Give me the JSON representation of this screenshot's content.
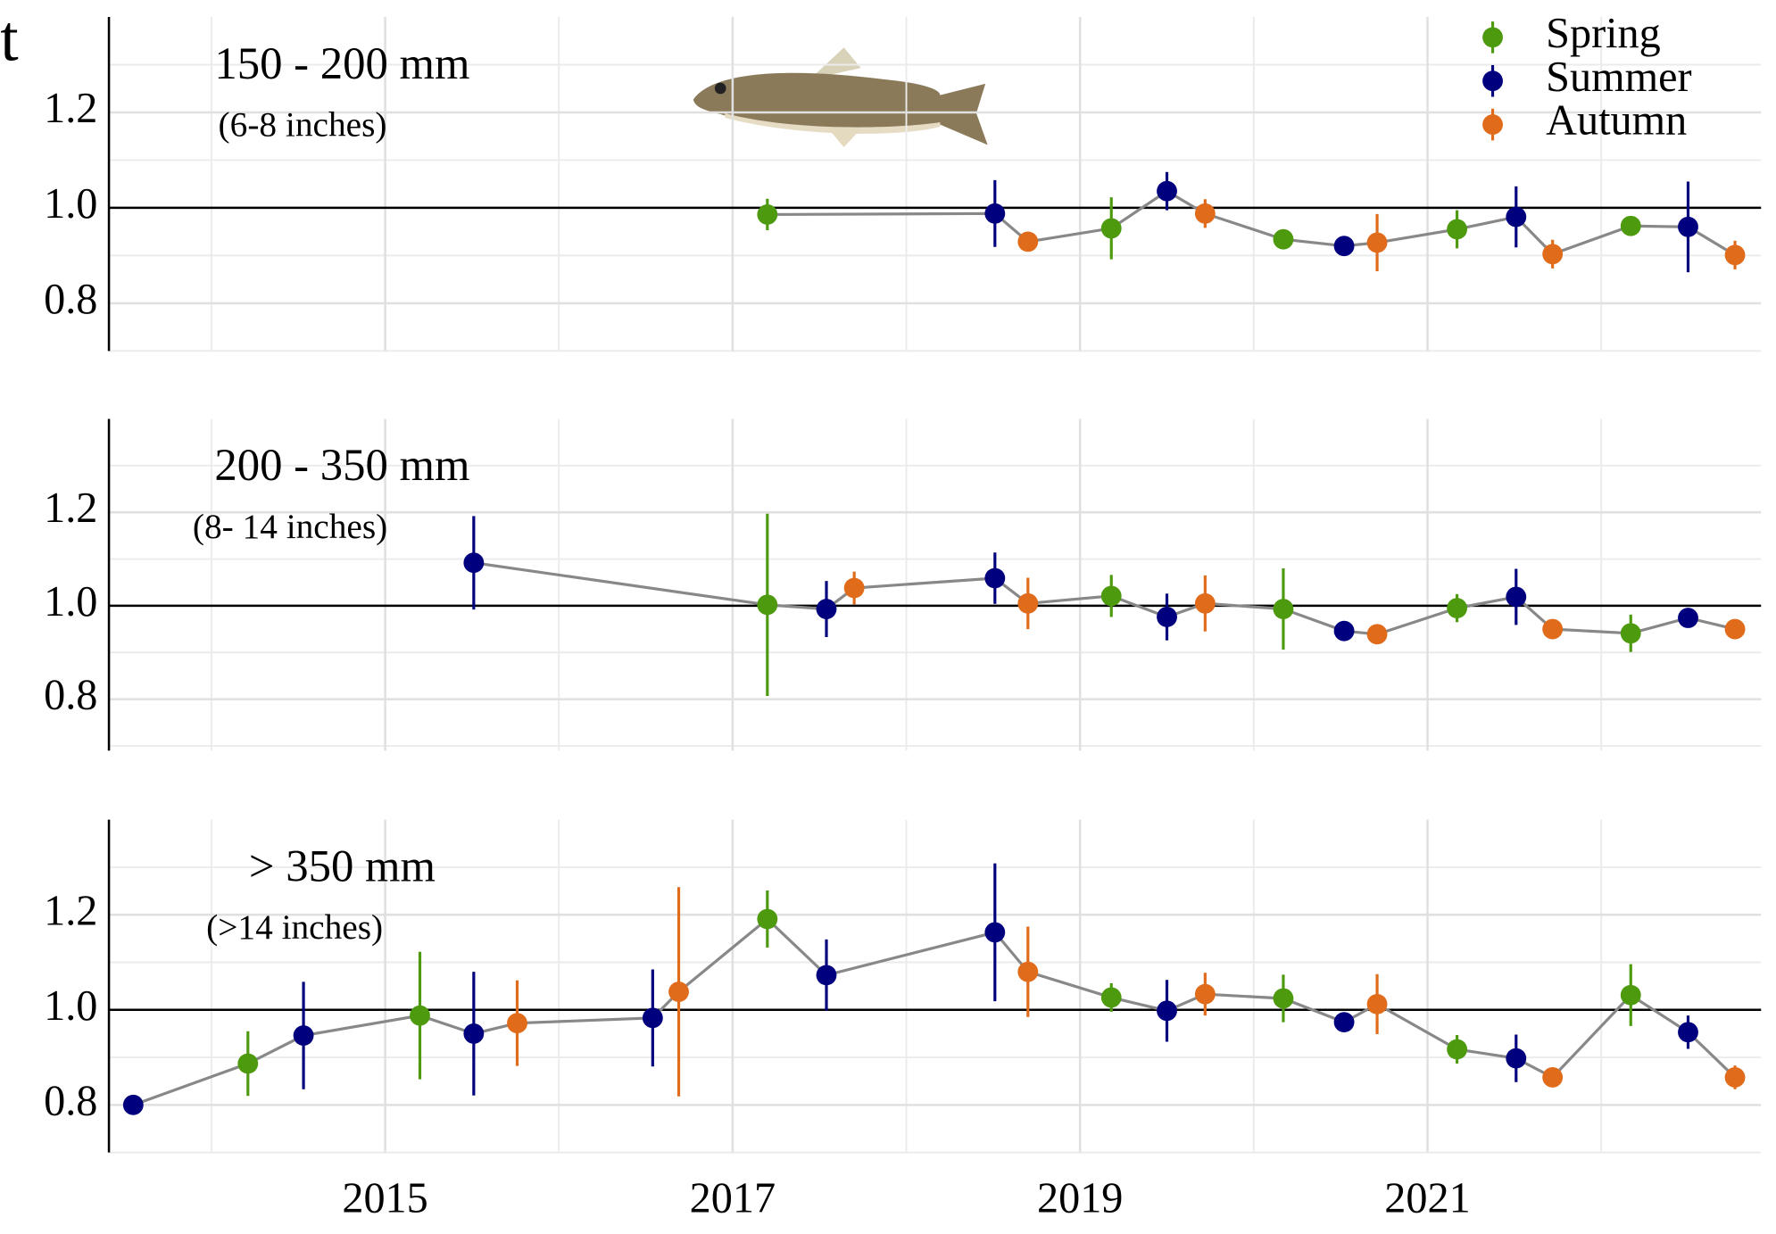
{
  "cropped_label": "t",
  "chart_data": [
    {
      "type": "scatter",
      "title": "150 - 200 mm",
      "subtitle": "(6-8 inches)",
      "xlim": [
        2013.41,
        2022.92
      ],
      "xticks": [
        2015,
        2017,
        2019,
        2021
      ],
      "ylim": [
        0.7,
        1.4
      ],
      "yticks": [
        0.8,
        {
          "value": 1,
          "label": "1.0"
        },
        1.2
      ],
      "reference_line": 1,
      "grid": true,
      "legend": "top-right",
      "line_color": "#888888",
      "series": [
        {
          "name": "Spring",
          "color": "#4d9a0f",
          "x": [
            2017.2,
            2019.18,
            2020.17,
            2021.17,
            2022.17
          ],
          "values": [
            0.986,
            0.957,
            0.934,
            0.955,
            0.962
          ],
          "errors": [
            0.033,
            0.065,
            0.01,
            0.04,
            0.02
          ]
        },
        {
          "name": "Summer",
          "color": "#00007f",
          "x": [
            2018.51,
            2019.5,
            2020.52,
            2021.51,
            2022.5
          ],
          "values": [
            0.988,
            1.035,
            0.92,
            0.981,
            0.96
          ],
          "errors": [
            0.07,
            0.04,
            0.02,
            0.064,
            0.095
          ]
        },
        {
          "name": "Autumn",
          "color": "#e06b1a",
          "x": [
            2018.7,
            2019.72,
            2020.71,
            2021.72,
            2022.77
          ],
          "values": [
            0.929,
            0.988,
            0.927,
            0.903,
            0.901
          ],
          "errors": [
            0.02,
            0.03,
            0.06,
            0.03,
            0.03
          ]
        }
      ]
    },
    {
      "type": "scatter",
      "title": "200 - 350 mm",
      "subtitle": "(8- 14 inches)",
      "xlim": [
        2013.41,
        2022.92
      ],
      "xticks": [
        2015,
        2017,
        2019,
        2021
      ],
      "ylim": [
        0.69,
        1.4
      ],
      "yticks": [
        0.8,
        {
          "value": 1,
          "label": "1.0"
        },
        1.2
      ],
      "reference_line": 1,
      "grid": true,
      "line_color": "#888888",
      "series": [
        {
          "color": "#4d9a0f",
          "x": [
            2017.2,
            2019.18,
            2020.17,
            2021.17,
            2022.17
          ],
          "values": [
            1.002,
            1.021,
            0.993,
            0.995,
            0.941
          ],
          "errors": [
            0.195,
            0.045,
            0.087,
            0.03,
            0.04
          ]
        },
        {
          "color": "#00007f",
          "x": [
            2015.51,
            2017.54,
            2018.51,
            2019.5,
            2020.52,
            2021.51,
            2022.5
          ],
          "values": [
            1.092,
            0.993,
            1.059,
            0.976,
            0.946,
            1.019,
            0.974
          ],
          "errors": [
            0.1,
            0.06,
            0.055,
            0.05,
            0.02,
            0.06,
            0.02
          ]
        },
        {
          "color": "#e06b1a",
          "x": [
            2017.7,
            2018.7,
            2019.72,
            2020.71,
            2021.72,
            2022.77
          ],
          "values": [
            1.038,
            1.005,
            1.005,
            0.939,
            0.95,
            0.95
          ],
          "errors": [
            0.035,
            0.055,
            0.06,
            0.01,
            0.02,
            0.02
          ]
        }
      ]
    },
    {
      "type": "scatter",
      "title": "> 350 mm",
      "subtitle": "(>14 inches)",
      "xlim": [
        2013.41,
        2022.92
      ],
      "xticks": [
        2015,
        2017,
        2019,
        2021
      ],
      "ylim": [
        0.7,
        1.4
      ],
      "yticks": [
        0.8,
        {
          "value": 1,
          "label": "1.0"
        },
        1.2
      ],
      "reference_line": 1,
      "grid": true,
      "line_color": "#888888",
      "series": [
        {
          "color": "#4d9a0f",
          "x": [
            2014.21,
            2015.2,
            2017.2,
            2019.18,
            2020.17,
            2021.17,
            2022.17
          ],
          "values": [
            0.887,
            0.988,
            1.191,
            1.026,
            1.024,
            0.917,
            1.031
          ],
          "errors": [
            0.068,
            0.134,
            0.06,
            0.03,
            0.05,
            0.03,
            0.065
          ]
        },
        {
          "color": "#00007f",
          "x": [
            2013.55,
            2014.53,
            2015.51,
            2016.54,
            2017.54,
            2018.51,
            2019.5,
            2020.52,
            2021.51,
            2022.5
          ],
          "values": [
            0.8,
            0.946,
            0.95,
            0.983,
            1.073,
            1.163,
            0.998,
            0.974,
            0.898,
            0.953
          ],
          "errors": [
            0,
            0.113,
            0.13,
            0.102,
            0.075,
            0.145,
            0.065,
            0.02,
            0.05,
            0.035
          ]
        },
        {
          "color": "#e06b1a",
          "x": [
            2015.76,
            2016.69,
            2018.7,
            2019.72,
            2020.71,
            2021.72,
            2022.77
          ],
          "values": [
            0.972,
            1.038,
            1.08,
            1.033,
            1.012,
            0.858,
            0.858
          ],
          "errors": [
            0.09,
            0.22,
            0.095,
            0.045,
            0.063,
            0.02,
            0.025
          ]
        }
      ]
    }
  ]
}
